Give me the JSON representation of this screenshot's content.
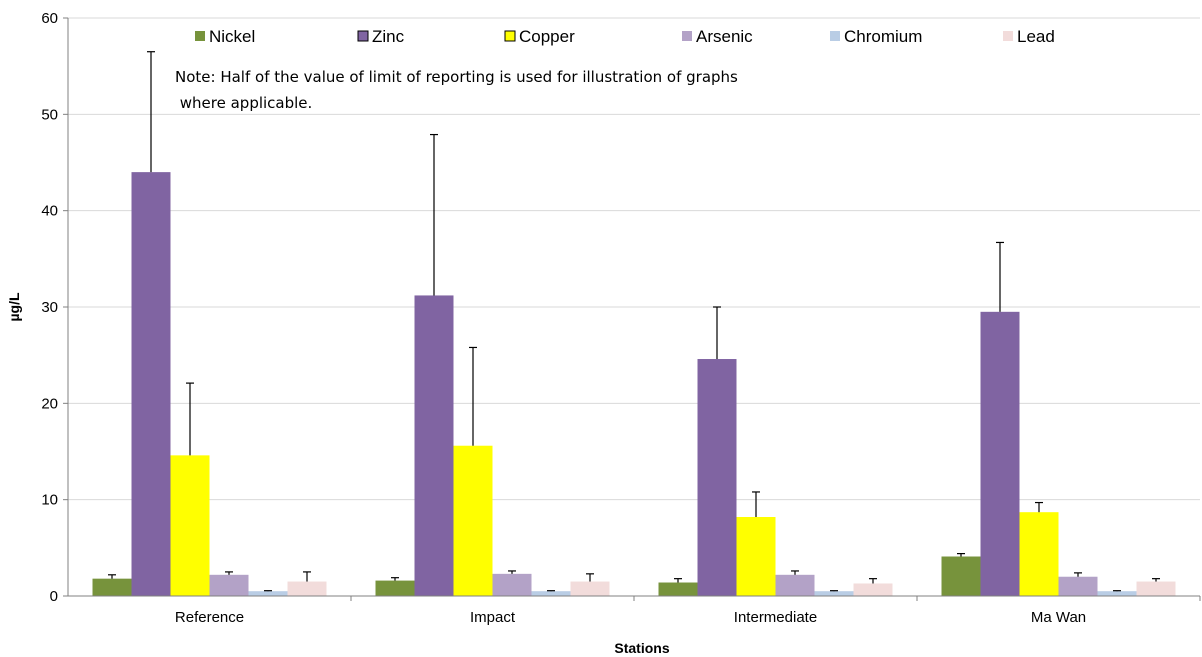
{
  "chart_data": {
    "type": "bar",
    "title": "",
    "xlabel": "Stations",
    "ylabel": "µg/L",
    "ylim": [
      0,
      60
    ],
    "yticks": [
      0,
      10,
      20,
      30,
      40,
      50,
      60
    ],
    "grid": true,
    "legend_position": "top",
    "note_lines": [
      "Note: Half of the value of limit of reporting is used for illustration of graphs",
      " where applicable."
    ],
    "categories": [
      "Reference",
      "Impact",
      "Intermediate",
      "Ma Wan"
    ],
    "series": [
      {
        "name": "Nickel",
        "color": "#77933c",
        "values": [
          1.8,
          1.6,
          1.4,
          4.1
        ],
        "errors": [
          0.4,
          0.3,
          0.4,
          0.3
        ]
      },
      {
        "name": "Zinc",
        "color": "#8064a2",
        "values": [
          44.0,
          31.2,
          24.6,
          29.5
        ],
        "errors": [
          12.5,
          16.7,
          5.4,
          7.2
        ]
      },
      {
        "name": "Copper",
        "color": "#ffff00",
        "values": [
          14.6,
          15.6,
          8.2,
          8.7
        ],
        "errors": [
          7.5,
          10.2,
          2.6,
          1.0
        ]
      },
      {
        "name": "Arsenic",
        "color": "#b3a2c7",
        "values": [
          2.2,
          2.3,
          2.2,
          2.0
        ],
        "errors": [
          0.3,
          0.3,
          0.4,
          0.4
        ]
      },
      {
        "name": "Chromium",
        "color": "#b9cde5",
        "values": [
          0.5,
          0.5,
          0.5,
          0.5
        ],
        "errors": [
          0.05,
          0.05,
          0.05,
          0.05
        ]
      },
      {
        "name": "Lead",
        "color": "#f2dcdb",
        "values": [
          1.5,
          1.5,
          1.3,
          1.5
        ],
        "errors": [
          1.0,
          0.8,
          0.5,
          0.3
        ]
      }
    ]
  }
}
